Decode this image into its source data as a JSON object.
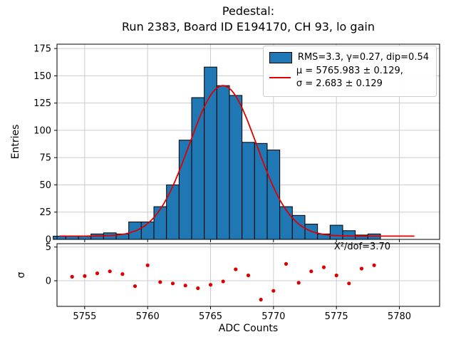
{
  "title": {
    "line1": "Pedestal:",
    "line2": "Run 2383, Board ID E194170, CH 93, lo gain"
  },
  "chart_data": {
    "type": "bar",
    "subtype": "histogram-with-gaussian-fit-and-residual-panel",
    "title": "Pedestal:\nRun 2383, Board ID E194170, CH 93, lo gain",
    "xlabel": "ADC Counts",
    "ylabel": "Entries",
    "xlim": [
      5752.8,
      5783.2
    ],
    "ylim": [
      0,
      179
    ],
    "xticks": [
      5755,
      5760,
      5765,
      5770,
      5775,
      5780
    ],
    "yticks": [
      0,
      25,
      50,
      75,
      100,
      125,
      150,
      175
    ],
    "grid": true,
    "legend_position": "upper right",
    "histogram": {
      "bin_width": 1,
      "bin_centers": [
        5753,
        5754,
        5755,
        5756,
        5757,
        5758,
        5759,
        5760,
        5761,
        5762,
        5763,
        5764,
        5765,
        5766,
        5767,
        5768,
        5769,
        5770,
        5771,
        5772,
        5773,
        5774,
        5775,
        5776,
        5777,
        5778
      ],
      "counts": [
        3,
        3,
        3,
        5,
        6,
        5,
        16,
        16,
        30,
        50,
        91,
        130,
        158,
        141,
        132,
        89,
        88,
        82,
        30,
        22,
        14,
        5,
        13,
        8,
        4,
        5
      ],
      "bar_color": "#1f77b4",
      "edge_color": "#000000"
    },
    "fit": {
      "type": "gaussian",
      "mu": 5765.983,
      "mu_err": 0.129,
      "sigma": 2.683,
      "sigma_err": 0.129,
      "amplitude": 138,
      "baseline": 3,
      "color": "#dd0000"
    },
    "legend": {
      "hist_label": "RMS=3.3, γ=0.27, dip=0.54",
      "fit_label_line1": "μ = 5765.983 ± 0.129,",
      "fit_label_line2": "σ = 2.683 ± 0.129"
    },
    "residuals": {
      "ylabel": "σ",
      "ylim": [
        -3.8,
        5.5
      ],
      "yticks": [
        0,
        5
      ],
      "color": "#dd0000",
      "annotation": "X²/dof=3.70",
      "x": [
        5754,
        5755,
        5756,
        5757,
        5758,
        5759,
        5760,
        5761,
        5762,
        5763,
        5764,
        5765,
        5766,
        5767,
        5768,
        5769,
        5770,
        5771,
        5772,
        5773,
        5774,
        5775,
        5776,
        5777,
        5778
      ],
      "y": [
        0.6,
        0.7,
        1.1,
        1.4,
        1.0,
        -0.8,
        2.3,
        -0.2,
        -0.4,
        -0.7,
        -1.1,
        -0.6,
        -0.1,
        1.7,
        0.8,
        -2.8,
        -1.5,
        2.5,
        -0.3,
        1.4,
        2.0,
        0.8,
        -0.4,
        1.8,
        2.3
      ]
    }
  }
}
